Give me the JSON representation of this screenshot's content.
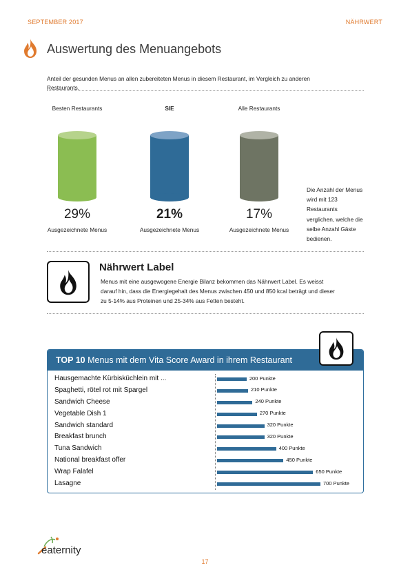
{
  "header": {
    "left": "SEPTEMBER 2017",
    "right": "NÄHRWERT"
  },
  "title": "Auswertung des Menuangebots",
  "intro": "Anteil der gesunden Menus an allen zubereiteten Menus in diesem Restaurant, im Vergleich zu anderen Restaurants.",
  "comparison": [
    {
      "label": "Besten Restaurants",
      "percent": "29%",
      "sub": "Ausgezeichnete Menus",
      "color": "#8bbd52",
      "top_color": "#b6d38c"
    },
    {
      "label": "SIE",
      "percent": "21%",
      "sub": "Ausgezeichnete Menus",
      "color": "#2f6b97",
      "top_color": "#7ea3c6"
    },
    {
      "label": "Alle Restaurants",
      "percent": "17%",
      "sub": "Ausgezeichnete Menus",
      "color": "#6e7463",
      "top_color": "#b0b3a6"
    }
  ],
  "side_note": "Die Anzahl der Menus wird mit 123 Restaurants verglichen, welche die selbe Anzahl Gäste bedienen.",
  "naehrwert_label": {
    "title": "Nährwert Label",
    "text": "Menus mit eine ausgewogene Energie Bilanz bekommen das Nährwert Label. Es weisst darauf hin, dass die Energiegehalt des Menus zwischen 450 und 850 kcal beträgt und dieser zu 5-14% aus Proteinen und 25-34% aus Fetten besteht.",
    "icon": "flame-icon"
  },
  "top10": {
    "title_bold": "TOP 10",
    "title_rest": " Menus mit dem Vita Score Award in ihrem Restaurant",
    "icon": "flame-icon"
  },
  "chart_data": {
    "type": "bar",
    "orientation": "horizontal",
    "categories": [
      "Hausgemachte Kürbisküchlein mit ...",
      "Spaghetti, rötel rot mit Spargel",
      "Sandwich Cheese",
      "Vegetable Dish 1",
      "Sandwich standard",
      "Breakfast brunch",
      "Tuna Sandwich",
      "National breakfast offer",
      "Wrap Falafel",
      "Lasagne"
    ],
    "values": [
      200,
      210,
      240,
      270,
      320,
      320,
      400,
      450,
      650,
      700
    ],
    "value_labels": [
      "200 Punkte",
      "210 Punkte",
      "240 Punkte",
      "270 Punkte",
      "320 Punkte",
      "320 Punkte",
      "400 Punkte",
      "450 Punkte",
      "650 Punkte",
      "700 Punkte"
    ],
    "xlim": [
      0,
      700
    ],
    "color": "#2f6b97"
  },
  "footer": {
    "logo": "eaternity",
    "page": "17"
  },
  "colors": {
    "accent": "#e07a2e",
    "blue": "#2f6b97"
  }
}
